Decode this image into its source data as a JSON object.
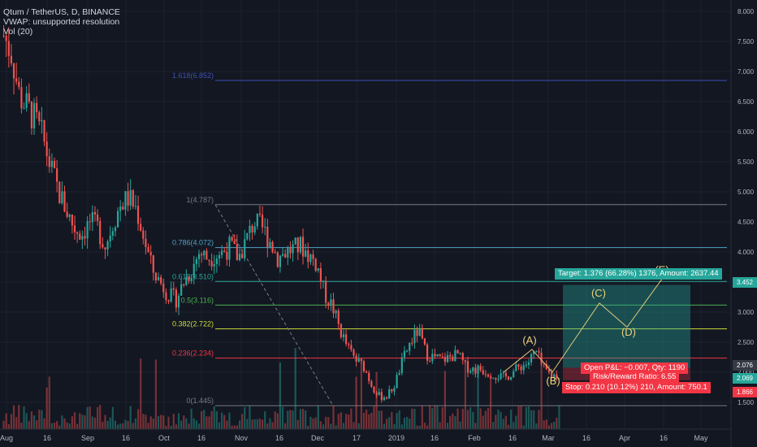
{
  "legend": {
    "symbol": "Qtum / TetherUS, D, BINANCE",
    "vwap": "VWAP: unsupported resolution",
    "vol": "Vol (20)"
  },
  "colors": {
    "background": "#131722",
    "up": "#26a69a",
    "down": "#ef5350",
    "grid": "#1e222d",
    "axis_text": "#b2b5be"
  },
  "chart_data": {
    "type": "candlestick",
    "ylim": [
      1.5,
      8.0
    ],
    "y_ticks": [
      "8.000",
      "7.500",
      "7.000",
      "6.500",
      "6.000",
      "5.500",
      "5.000",
      "4.500",
      "4.000",
      "3.500",
      "3.000",
      "2.500",
      "2.000",
      "1.500"
    ],
    "x_ticks": [
      "Aug",
      "16",
      "Sep",
      "16",
      "Oct",
      "16",
      "Nov",
      "16",
      "Dec",
      "17",
      "2019",
      "16",
      "Feb",
      "16",
      "Mar",
      "16",
      "Apr",
      "16",
      "May"
    ],
    "close_path": [
      7.6,
      7.3,
      6.6,
      6.4,
      6.2,
      5.9,
      5.4,
      5.0,
      4.7,
      4.4,
      4.3,
      4.5,
      4.4,
      4.1,
      4.5,
      4.8,
      4.9,
      4.7,
      4.2,
      3.7,
      3.5,
      3.3,
      3.2,
      3.5,
      3.7,
      4.0,
      3.9,
      3.95,
      4.0,
      4.1,
      3.9,
      4.2,
      4.5,
      4.4,
      4.2,
      3.9,
      4.0,
      4.05,
      4.1,
      3.95,
      3.8,
      3.3,
      3.1,
      2.7,
      2.4,
      2.2,
      2.1,
      1.8,
      1.6,
      1.6,
      1.8,
      2.2,
      2.5,
      2.7,
      2.3,
      2.25,
      2.2,
      2.25,
      2.3,
      2.1,
      2.05,
      2.05,
      2.0,
      1.95,
      1.9,
      2.0,
      2.1,
      2.15,
      2.35,
      2.05,
      1.95,
      1.95
    ],
    "fibonacci": [
      {
        "label": "1.618(6.852)",
        "price": 6.852,
        "color": "#3f4fb5"
      },
      {
        "label": "1(4.787)",
        "price": 4.787,
        "color": "#787b86"
      },
      {
        "label": "0.786(4.072)",
        "price": 4.072,
        "color": "#4fa3c7"
      },
      {
        "label": "0.618(3.510)",
        "price": 3.51,
        "color": "#26a69a"
      },
      {
        "label": "0.5(3.116)",
        "price": 3.116,
        "color": "#4caf50"
      },
      {
        "label": "0.382(2.722)",
        "price": 2.722,
        "color": "#cddc39"
      },
      {
        "label": "0.236(2.234)",
        "price": 2.234,
        "color": "#f23645"
      },
      {
        "label": "0(1.445)",
        "price": 1.445,
        "color": "#787b86"
      }
    ],
    "wave_labels": [
      "(A)",
      "(B)",
      "(C)",
      "(D)",
      "(E)"
    ],
    "position": {
      "target": "Target: 1.376 (66.28%) 1376, Amount: 2637.44",
      "open_pl": "Open P&L: −0.007, Qty: 1190",
      "risk_reward": "Risk/Reward Ratio: 6.55",
      "stop": "Stop: 0.210 (10.12%) 210, Amount: 750.1"
    },
    "price_tags": [
      {
        "label": "3.452",
        "color": "#26a69a"
      },
      {
        "label": "2.076",
        "color": "#363a45"
      },
      {
        "label": "2.069",
        "color": "#26a69a"
      },
      {
        "label": "1.866",
        "color": "#f23645"
      }
    ]
  }
}
